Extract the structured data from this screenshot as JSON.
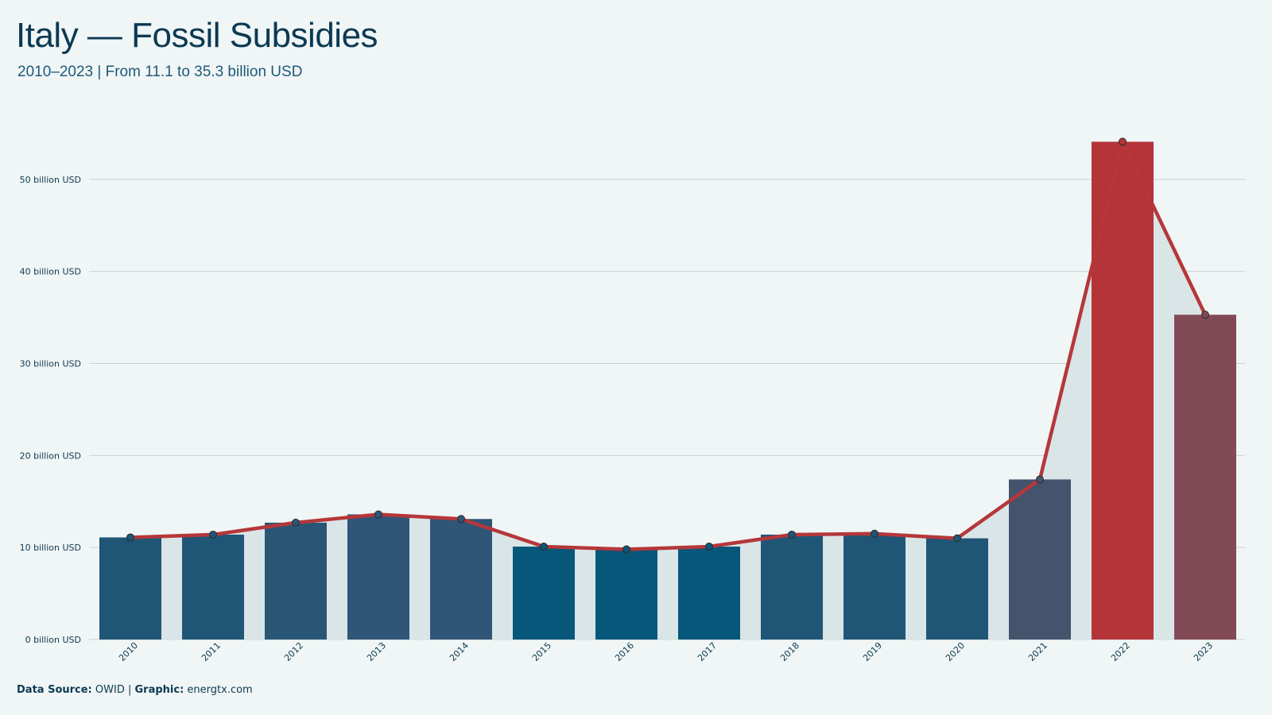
{
  "header": {
    "title": "Italy — Fossil Subsidies",
    "subtitle": "2010–2023 | From 11.1 to 35.3 billion USD"
  },
  "footer": {
    "source_label": "Data Source:",
    "source_value": "OWID",
    "separator": " | ",
    "graphic_label": "Graphic:",
    "graphic_value": "energtx.com"
  },
  "colors": {
    "background": "#f0f5f5",
    "area_fill": "#dae5e7",
    "line": "#b5373a",
    "grid": "#c8d2d4",
    "bar_default": "#1f5676",
    "bar_low": "#07577a",
    "bar_mid": "#2f5577",
    "bar_2021": "#45546d",
    "bar_2022": "#b43439",
    "bar_2023": "#824a56",
    "text": "#0b3a53"
  },
  "chart_data": {
    "type": "bar",
    "categories": [
      "2010",
      "2011",
      "2012",
      "2013",
      "2014",
      "2015",
      "2016",
      "2017",
      "2018",
      "2019",
      "2020",
      "2021",
      "2022",
      "2023"
    ],
    "values": [
      11.1,
      11.4,
      12.7,
      13.6,
      13.1,
      10.1,
      9.8,
      10.1,
      11.4,
      11.5,
      11.0,
      17.4,
      54.1,
      35.3
    ],
    "bar_colors": [
      "#1f5676",
      "#1f5676",
      "#2a5675",
      "#2f5577",
      "#2f5577",
      "#07577a",
      "#07577a",
      "#07577a",
      "#1f5676",
      "#1f5676",
      "#1f5676",
      "#45546d",
      "#b43439",
      "#824a56"
    ],
    "overlay": "line with markers and shaded area over the same values",
    "ylim": [
      0,
      55
    ],
    "y_ticks": [
      0,
      10,
      20,
      30,
      40,
      50
    ],
    "y_tick_labels": [
      "0 billion USD",
      "10 billion USD",
      "20 billion USD",
      "30 billion USD",
      "40 billion USD",
      "50 billion USD"
    ],
    "grid": true,
    "xlabel": "",
    "ylabel": ""
  }
}
